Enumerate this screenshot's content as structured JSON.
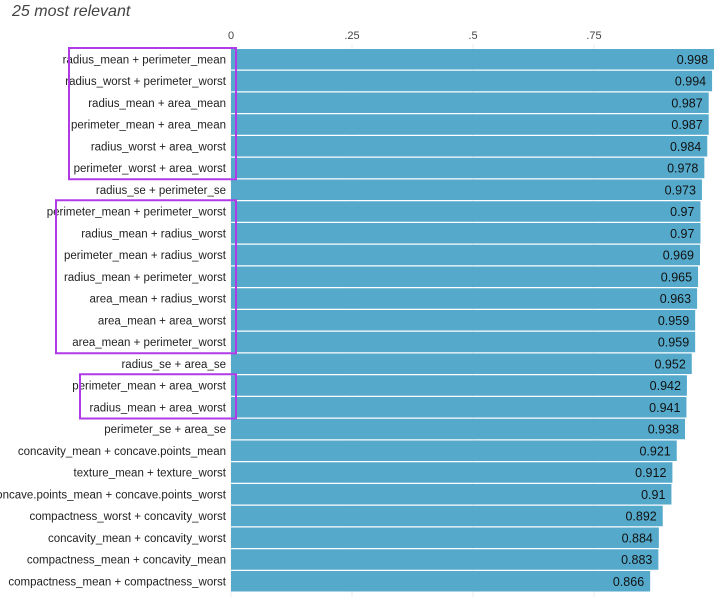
{
  "chart_data": {
    "type": "bar",
    "orientation": "horizontal",
    "title": "25 most relevant",
    "xlabel": "",
    "ylabel": "",
    "xlim": [
      0,
      1
    ],
    "ticks": [
      {
        "value": 0,
        "label": "0"
      },
      {
        "value": 0.25,
        "label": ".25"
      },
      {
        "value": 0.5,
        "label": ".5"
      },
      {
        "value": 0.75,
        "label": ".75"
      }
    ],
    "grid": true,
    "bar_color": "#55aacc",
    "highlight_color": "#b03ae8",
    "categories": [
      "radius_mean + perimeter_mean",
      "radius_worst + perimeter_worst",
      "radius_mean + area_mean",
      "perimeter_mean + area_mean",
      "radius_worst + area_worst",
      "perimeter_worst + area_worst",
      "radius_se + perimeter_se",
      "perimeter_mean + perimeter_worst",
      "radius_mean + radius_worst",
      "perimeter_mean + radius_worst",
      "radius_mean + perimeter_worst",
      "area_mean + radius_worst",
      "area_mean + area_worst",
      "area_mean + perimeter_worst",
      "radius_se + area_se",
      "perimeter_mean + area_worst",
      "radius_mean + area_worst",
      "perimeter_se + area_se",
      "concavity_mean + concave.points_mean",
      "texture_mean + texture_worst",
      "concave.points_mean + concave.points_worst",
      "compactness_worst + concavity_worst",
      "concavity_mean + concavity_worst",
      "compactness_mean + concavity_mean",
      "compactness_mean + compactness_worst"
    ],
    "values": [
      0.998,
      0.994,
      0.987,
      0.987,
      0.984,
      0.978,
      0.973,
      0.97,
      0.97,
      0.969,
      0.965,
      0.963,
      0.959,
      0.959,
      0.952,
      0.942,
      0.941,
      0.938,
      0.921,
      0.912,
      0.91,
      0.892,
      0.884,
      0.883,
      0.866
    ],
    "value_labels": [
      "0.998",
      "0.994",
      "0.987",
      "0.987",
      "0.984",
      "0.978",
      "0.973",
      "0.97",
      "0.97",
      "0.969",
      "0.965",
      "0.963",
      "0.959",
      "0.959",
      "0.952",
      "0.942",
      "0.941",
      "0.938",
      "0.921",
      "0.912",
      "0.91",
      "0.892",
      "0.884",
      "0.883",
      "0.866"
    ],
    "highlight_groups": [
      {
        "first": 0,
        "last": 5
      },
      {
        "first": 7,
        "last": 13
      },
      {
        "first": 15,
        "last": 16
      }
    ]
  }
}
